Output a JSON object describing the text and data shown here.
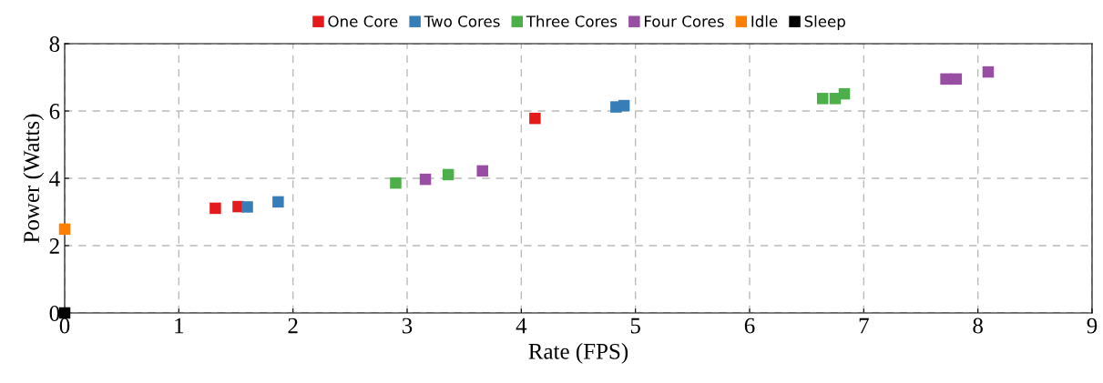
{
  "chart_data": {
    "type": "scatter",
    "xlabel": "Rate (FPS)",
    "ylabel": "Power (Watts)",
    "xlim": [
      0,
      9
    ],
    "ylim": [
      0,
      8
    ],
    "xticks": [
      0,
      1,
      2,
      3,
      4,
      5,
      6,
      7,
      8,
      9
    ],
    "yticks": [
      0,
      2,
      4,
      6,
      8
    ],
    "grid": true,
    "legend": "top",
    "marker": "square",
    "series": [
      {
        "name": "One Core",
        "color": "#e41a1c",
        "x": [
          1.32,
          1.52,
          4.12
        ],
        "values": [
          3.11,
          3.16,
          5.78
        ]
      },
      {
        "name": "Two Cores",
        "color": "#377eb8",
        "x": [
          1.6,
          1.87,
          4.83,
          4.9
        ],
        "values": [
          3.15,
          3.3,
          6.12,
          6.16
        ]
      },
      {
        "name": "Three Cores",
        "color": "#4daf4a",
        "x": [
          2.9,
          3.36,
          6.64,
          6.75,
          6.83
        ],
        "values": [
          3.86,
          4.11,
          6.37,
          6.37,
          6.51
        ]
      },
      {
        "name": "Four Cores",
        "color": "#984ea3",
        "x": [
          3.16,
          3.66,
          7.72,
          7.81,
          8.09
        ],
        "values": [
          3.97,
          4.22,
          6.95,
          6.95,
          7.16
        ]
      },
      {
        "name": "Idle",
        "color": "#ff7f00",
        "x": [
          0
        ],
        "values": [
          2.49
        ]
      },
      {
        "name": "Sleep",
        "color": "#000000",
        "x": [
          0
        ],
        "values": [
          0
        ]
      }
    ]
  }
}
